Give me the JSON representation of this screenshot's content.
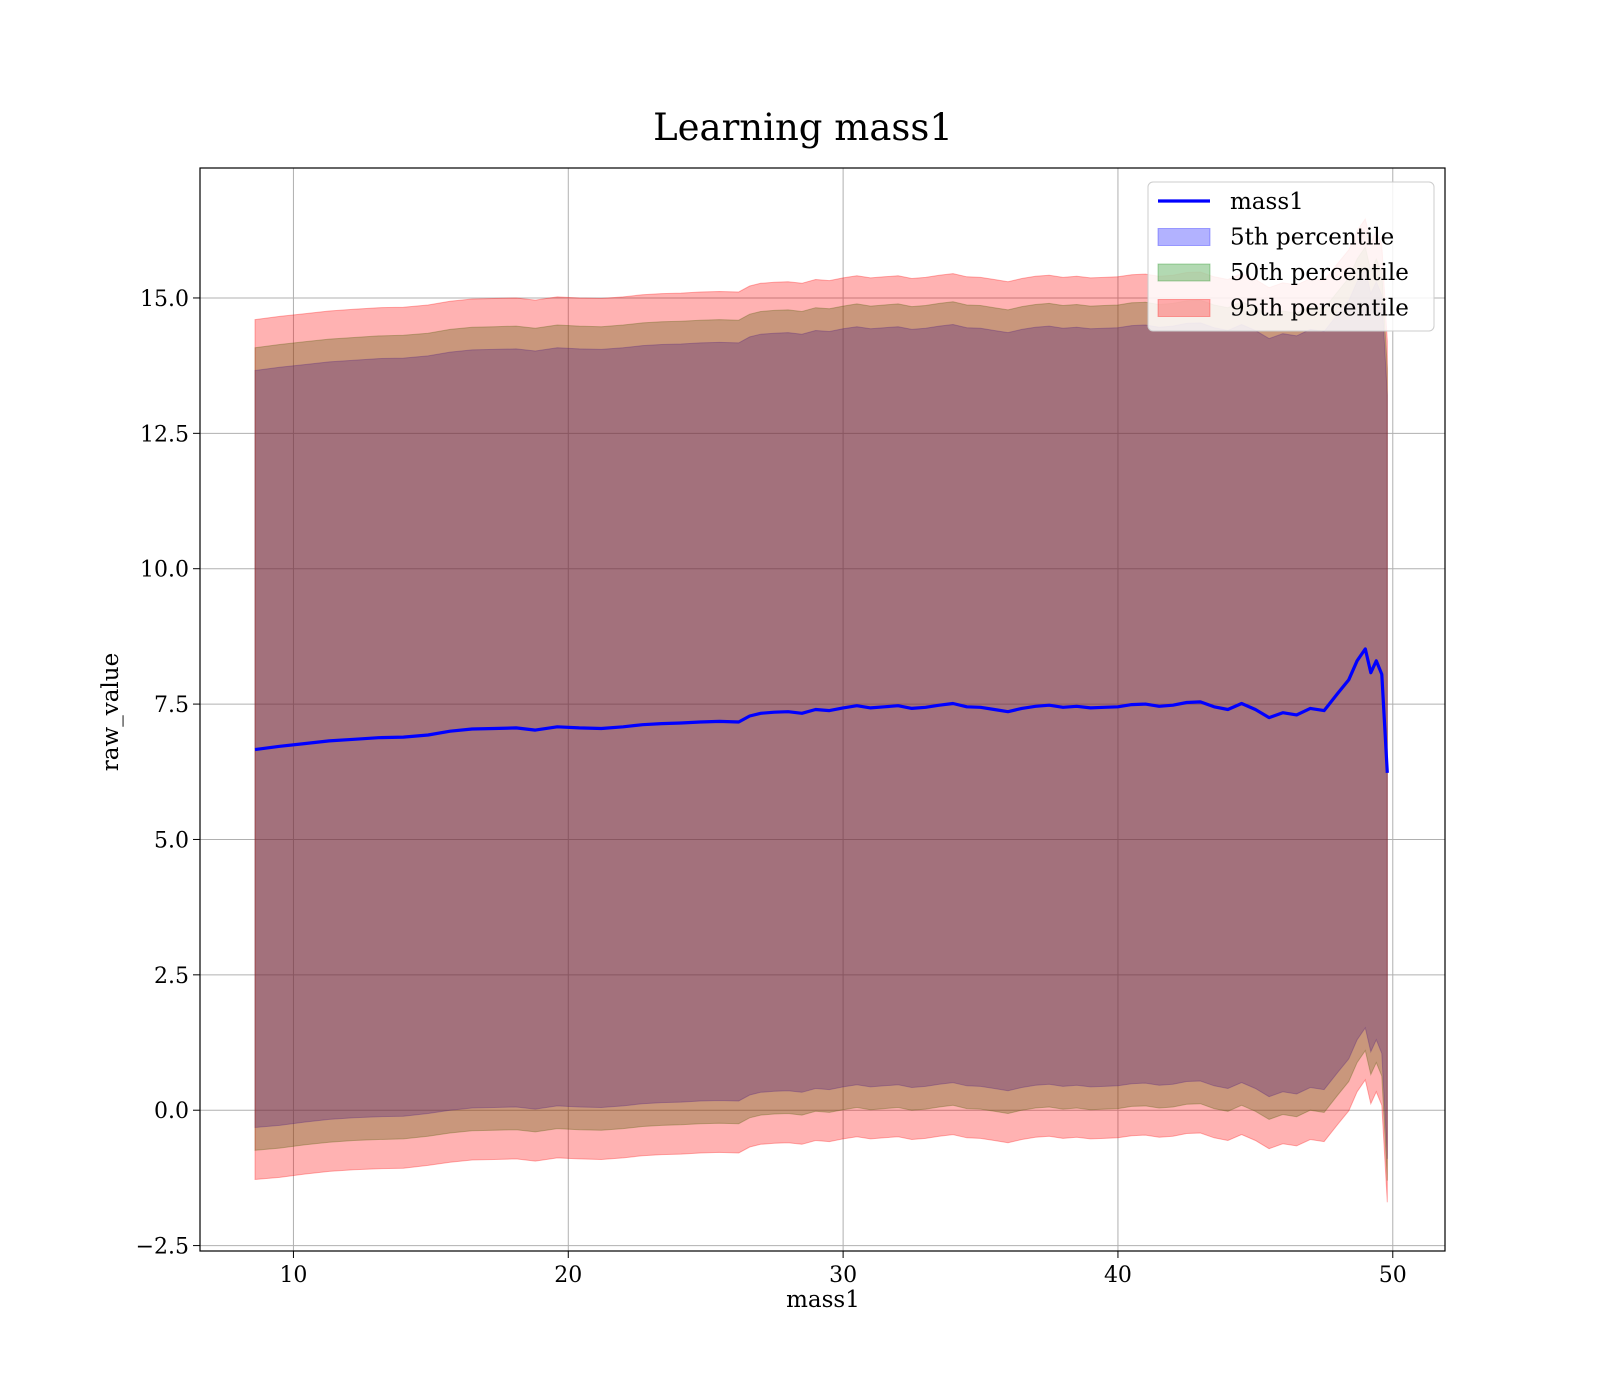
{
  "chart_data": {
    "type": "area",
    "title": "Learning mass1",
    "xlabel": "mass1",
    "ylabel": "raw_value",
    "xlim": [
      6.6,
      51.9
    ],
    "ylim": [
      -2.6,
      17.4
    ],
    "xticks": [
      10,
      20,
      30,
      40,
      50
    ],
    "xtick_labels": [
      "10",
      "20",
      "30",
      "40",
      "50"
    ],
    "yticks": [
      -2.5,
      0.0,
      2.5,
      5.0,
      7.5,
      10.0,
      12.5,
      15.0
    ],
    "ytick_labels": [
      "−2.5",
      "0.0",
      "2.5",
      "5.0",
      "7.5",
      "10.0",
      "12.5",
      "15.0"
    ],
    "grid": true,
    "legend_position": "top-right",
    "x": [
      8.6,
      9.5,
      10.4,
      11.3,
      12.2,
      13.1,
      14.0,
      14.9,
      15.7,
      16.5,
      17.3,
      18.1,
      18.8,
      19.6,
      20.4,
      21.2,
      22.0,
      22.7,
      23.4,
      24.1,
      24.8,
      25.5,
      26.2,
      26.6,
      27.0,
      27.5,
      28.0,
      28.5,
      29.0,
      29.5,
      30.0,
      30.5,
      31.0,
      31.5,
      32.0,
      32.5,
      33.0,
      33.5,
      34.0,
      34.5,
      35.0,
      35.5,
      36.0,
      36.5,
      37.0,
      37.5,
      38.0,
      38.5,
      39.0,
      39.5,
      40.0,
      40.5,
      41.0,
      41.5,
      42.0,
      42.5,
      43.0,
      43.5,
      44.0,
      44.5,
      45.0,
      45.5,
      46.0,
      46.5,
      47.0,
      47.5,
      48.0,
      48.4,
      48.7,
      49.0,
      49.2,
      49.4,
      49.6,
      49.8
    ],
    "series": [
      {
        "name": "mass1",
        "kind": "line",
        "color": "#0000ff",
        "values": [
          6.66,
          6.72,
          6.77,
          6.82,
          6.85,
          6.88,
          6.89,
          6.93,
          7.0,
          7.04,
          7.05,
          7.06,
          7.02,
          7.08,
          7.06,
          7.05,
          7.08,
          7.12,
          7.14,
          7.15,
          7.17,
          7.18,
          7.17,
          7.28,
          7.33,
          7.35,
          7.36,
          7.33,
          7.4,
          7.38,
          7.43,
          7.47,
          7.43,
          7.45,
          7.47,
          7.42,
          7.44,
          7.48,
          7.51,
          7.45,
          7.44,
          7.4,
          7.36,
          7.42,
          7.46,
          7.48,
          7.44,
          7.46,
          7.43,
          7.44,
          7.45,
          7.49,
          7.5,
          7.46,
          7.48,
          7.53,
          7.54,
          7.45,
          7.4,
          7.51,
          7.4,
          7.25,
          7.34,
          7.3,
          7.42,
          7.38,
          7.7,
          7.95,
          8.3,
          8.52,
          8.08,
          8.3,
          8.05,
          6.23
        ]
      },
      {
        "name": "5th percentile",
        "kind": "band",
        "color": "#0000ff",
        "opacity": 0.3,
        "lower": [
          -0.32,
          -0.28,
          -0.22,
          -0.17,
          -0.14,
          -0.12,
          -0.11,
          -0.06,
          0.0,
          0.04,
          0.05,
          0.06,
          0.02,
          0.08,
          0.06,
          0.05,
          0.08,
          0.12,
          0.14,
          0.15,
          0.17,
          0.18,
          0.17,
          0.28,
          0.33,
          0.35,
          0.36,
          0.33,
          0.4,
          0.38,
          0.43,
          0.47,
          0.43,
          0.45,
          0.47,
          0.42,
          0.44,
          0.48,
          0.51,
          0.45,
          0.44,
          0.4,
          0.36,
          0.42,
          0.46,
          0.48,
          0.44,
          0.46,
          0.43,
          0.44,
          0.45,
          0.49,
          0.5,
          0.46,
          0.48,
          0.53,
          0.54,
          0.45,
          0.4,
          0.51,
          0.4,
          0.25,
          0.34,
          0.3,
          0.42,
          0.38,
          0.7,
          0.95,
          1.3,
          1.52,
          1.08,
          1.3,
          1.05,
          -0.9
        ],
        "upper": [
          13.66,
          13.72,
          13.77,
          13.82,
          13.85,
          13.88,
          13.89,
          13.93,
          14.0,
          14.04,
          14.05,
          14.06,
          14.02,
          14.08,
          14.06,
          14.05,
          14.08,
          14.12,
          14.14,
          14.15,
          14.17,
          14.18,
          14.17,
          14.28,
          14.33,
          14.35,
          14.36,
          14.33,
          14.4,
          14.38,
          14.43,
          14.47,
          14.43,
          14.45,
          14.47,
          14.42,
          14.44,
          14.48,
          14.51,
          14.45,
          14.44,
          14.4,
          14.36,
          14.42,
          14.46,
          14.48,
          14.44,
          14.46,
          14.43,
          14.44,
          14.45,
          14.49,
          14.5,
          14.46,
          14.48,
          14.53,
          14.54,
          14.45,
          14.4,
          14.51,
          14.4,
          14.25,
          14.34,
          14.3,
          14.42,
          14.38,
          14.7,
          14.95,
          15.3,
          15.52,
          15.08,
          15.3,
          15.05,
          13.2
        ]
      },
      {
        "name": "50th percentile",
        "kind": "band",
        "color": "#008000",
        "opacity": 0.3,
        "lower": [
          -0.74,
          -0.7,
          -0.64,
          -0.59,
          -0.56,
          -0.54,
          -0.53,
          -0.48,
          -0.42,
          -0.38,
          -0.37,
          -0.36,
          -0.4,
          -0.34,
          -0.36,
          -0.37,
          -0.34,
          -0.3,
          -0.28,
          -0.27,
          -0.25,
          -0.24,
          -0.25,
          -0.14,
          -0.09,
          -0.07,
          -0.06,
          -0.09,
          -0.02,
          -0.04,
          0.01,
          0.05,
          0.01,
          0.03,
          0.05,
          0.0,
          0.02,
          0.06,
          0.09,
          0.03,
          0.02,
          -0.02,
          -0.06,
          0.0,
          0.04,
          0.06,
          0.02,
          0.04,
          0.01,
          0.02,
          0.03,
          0.07,
          0.08,
          0.04,
          0.06,
          0.11,
          0.12,
          0.03,
          -0.02,
          0.09,
          -0.02,
          -0.17,
          -0.08,
          -0.12,
          0.0,
          -0.04,
          0.28,
          0.53,
          0.88,
          1.1,
          0.66,
          0.88,
          0.63,
          -1.3
        ],
        "upper": [
          14.08,
          14.14,
          14.19,
          14.24,
          14.27,
          14.3,
          14.31,
          14.35,
          14.42,
          14.46,
          14.47,
          14.48,
          14.44,
          14.5,
          14.48,
          14.47,
          14.5,
          14.54,
          14.56,
          14.57,
          14.59,
          14.6,
          14.59,
          14.7,
          14.75,
          14.77,
          14.78,
          14.75,
          14.82,
          14.8,
          14.85,
          14.89,
          14.85,
          14.87,
          14.89,
          14.84,
          14.86,
          14.9,
          14.93,
          14.87,
          14.86,
          14.82,
          14.78,
          14.84,
          14.88,
          14.9,
          14.86,
          14.88,
          14.85,
          14.86,
          14.87,
          14.91,
          14.92,
          14.88,
          14.9,
          14.95,
          14.96,
          14.87,
          14.82,
          14.93,
          14.82,
          14.67,
          14.76,
          14.72,
          14.84,
          14.8,
          15.12,
          15.37,
          15.72,
          15.94,
          15.5,
          15.72,
          15.47,
          13.7
        ]
      },
      {
        "name": "95th percentile",
        "kind": "band",
        "color": "#ff0000",
        "opacity": 0.3,
        "lower": [
          -1.28,
          -1.24,
          -1.18,
          -1.13,
          -1.1,
          -1.08,
          -1.07,
          -1.02,
          -0.96,
          -0.92,
          -0.91,
          -0.9,
          -0.94,
          -0.88,
          -0.9,
          -0.91,
          -0.88,
          -0.84,
          -0.82,
          -0.81,
          -0.79,
          -0.78,
          -0.79,
          -0.68,
          -0.63,
          -0.61,
          -0.6,
          -0.63,
          -0.56,
          -0.58,
          -0.53,
          -0.49,
          -0.53,
          -0.51,
          -0.49,
          -0.54,
          -0.52,
          -0.48,
          -0.45,
          -0.51,
          -0.52,
          -0.56,
          -0.6,
          -0.54,
          -0.5,
          -0.48,
          -0.52,
          -0.5,
          -0.53,
          -0.52,
          -0.51,
          -0.47,
          -0.46,
          -0.5,
          -0.48,
          -0.43,
          -0.42,
          -0.51,
          -0.56,
          -0.45,
          -0.56,
          -0.71,
          -0.62,
          -0.66,
          -0.54,
          -0.58,
          -0.26,
          -0.01,
          0.34,
          0.56,
          0.12,
          0.34,
          0.09,
          -1.7
        ],
        "upper": [
          14.6,
          14.66,
          14.71,
          14.76,
          14.79,
          14.82,
          14.83,
          14.87,
          14.94,
          14.98,
          14.99,
          15.0,
          14.96,
          15.02,
          15.0,
          14.99,
          15.02,
          15.06,
          15.08,
          15.09,
          15.11,
          15.12,
          15.11,
          15.22,
          15.27,
          15.29,
          15.3,
          15.27,
          15.34,
          15.32,
          15.37,
          15.41,
          15.37,
          15.39,
          15.41,
          15.36,
          15.38,
          15.42,
          15.45,
          15.39,
          15.38,
          15.34,
          15.3,
          15.36,
          15.4,
          15.42,
          15.38,
          15.4,
          15.37,
          15.38,
          15.39,
          15.43,
          15.44,
          15.4,
          15.42,
          15.47,
          15.48,
          15.39,
          15.34,
          15.45,
          15.34,
          15.19,
          15.28,
          15.24,
          15.36,
          15.32,
          15.64,
          15.89,
          16.24,
          16.46,
          16.02,
          16.24,
          15.99,
          14.2
        ]
      }
    ]
  }
}
